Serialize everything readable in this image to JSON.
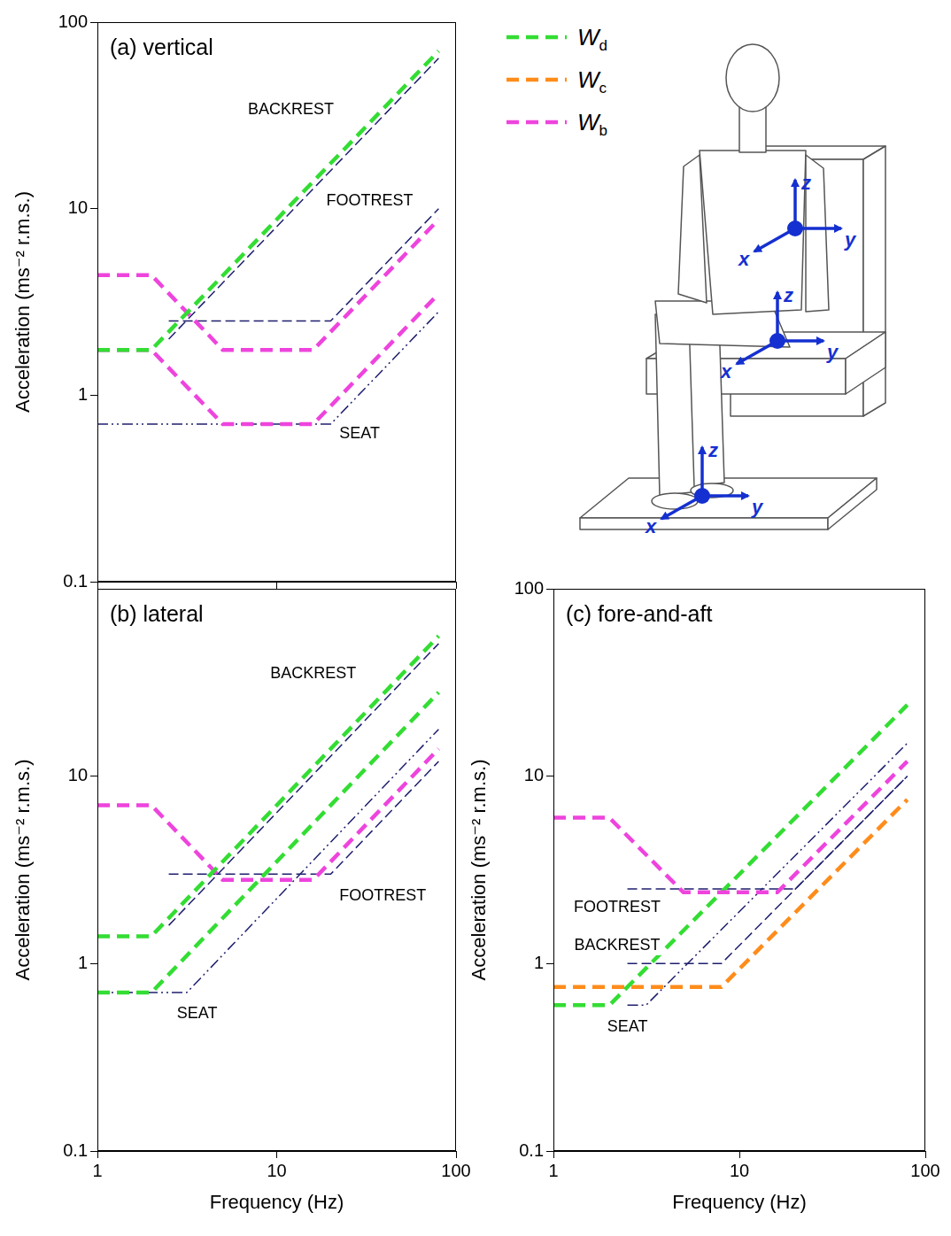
{
  "chart_data": [
    {
      "type": "line",
      "title": "(a) vertical",
      "y_label": "Acceleration (ms⁻² r.m.s.)",
      "log": true,
      "grid": false,
      "tick_labels": "y",
      "xlim": [
        1,
        100
      ],
      "ylim": [
        0.1,
        100
      ],
      "xticks": [
        1,
        10,
        100
      ],
      "yticks": [
        0.1,
        1,
        10,
        100
      ],
      "series": [
        {
          "name": "Wd",
          "color": "#33dd33",
          "line_style": "dashed",
          "x": [
            1,
            2,
            80
          ],
          "values": [
            1.75,
            1.75,
            70
          ]
        },
        {
          "name": "BACKREST",
          "color": "#1f1f6e",
          "line_style": "dashed",
          "x": [
            2.5,
            80
          ],
          "values": [
            2,
            64
          ],
          "label_at": {
            "x": 12,
            "y": 34
          }
        },
        {
          "name": "Wb",
          "color": "#ee44dd",
          "line_style": "dashed",
          "x": [
            1,
            2,
            5,
            16,
            80
          ],
          "values": [
            4.4,
            4.4,
            1.75,
            1.75,
            8.75
          ]
        },
        {
          "name": "FOOTREST",
          "color": "#1f1f6e",
          "line_style": "dashed",
          "x": [
            2.5,
            20,
            80
          ],
          "values": [
            2.5,
            2.5,
            10
          ],
          "label_at": {
            "x": 33,
            "y": 11
          }
        },
        {
          "name": "Wb",
          "color": "#ee44dd",
          "line_style": "dashed",
          "x": [
            1,
            2,
            5,
            16,
            80
          ],
          "values": [
            1.75,
            1.75,
            0.7,
            0.7,
            3.5
          ]
        },
        {
          "name": "SEAT",
          "color": "#1f1f6e",
          "line_style": "dashdot",
          "x": [
            1,
            20,
            80
          ],
          "values": [
            0.7,
            0.7,
            2.8
          ],
          "label_at": {
            "x": 29,
            "y": 0.62
          }
        }
      ]
    },
    {
      "type": "line",
      "title": "(b) lateral",
      "x_label": "Frequency (Hz)",
      "y_label": "Acceleration (ms⁻² r.m.s.)",
      "log": true,
      "grid": false,
      "xlim": [
        1,
        100
      ],
      "ylim": [
        0.1,
        100
      ],
      "xticks": [
        1,
        10,
        100
      ],
      "yticks": [
        0.1,
        1,
        10
      ],
      "series": [
        {
          "name": "Wd",
          "color": "#33dd33",
          "line_style": "dashed",
          "x": [
            1,
            2,
            80
          ],
          "values": [
            1.4,
            1.4,
            56
          ]
        },
        {
          "name": "BACKREST",
          "color": "#1f1f6e",
          "line_style": "dashed",
          "x": [
            2.5,
            80
          ],
          "values": [
            1.6,
            51
          ],
          "label_at": {
            "x": 16,
            "y": 35
          }
        },
        {
          "name": "Wb",
          "color": "#ee44dd",
          "line_style": "dashed",
          "x": [
            1,
            2,
            5,
            16,
            80
          ],
          "values": [
            7,
            7,
            2.8,
            2.8,
            14
          ]
        },
        {
          "name": "FOOTREST",
          "color": "#1f1f6e",
          "line_style": "dashed",
          "x": [
            2.5,
            20,
            80
          ],
          "values": [
            3,
            3,
            12
          ],
          "label_at": {
            "x": 39,
            "y": 2.3
          }
        },
        {
          "name": "Wd",
          "color": "#33dd33",
          "line_style": "dashed",
          "x": [
            1,
            2,
            80
          ],
          "values": [
            0.7,
            0.7,
            28
          ]
        },
        {
          "name": "SEAT",
          "color": "#1f1f6e",
          "line_style": "dashdot",
          "x": [
            1,
            3.15,
            80
          ],
          "values": [
            0.7,
            0.7,
            17.8
          ],
          "label_at": {
            "x": 3.6,
            "y": 0.54
          }
        }
      ]
    },
    {
      "type": "line",
      "title": "(c) fore-and-aft",
      "x_label": "Frequency (Hz)",
      "y_label": "Acceleration (ms⁻² r.m.s.)",
      "log": true,
      "grid": false,
      "xlim": [
        1,
        100
      ],
      "ylim": [
        0.1,
        100
      ],
      "xticks": [
        1,
        10,
        100
      ],
      "yticks": [
        0.1,
        1,
        10,
        100
      ],
      "series": [
        {
          "name": "Wb",
          "color": "#ee44dd",
          "line_style": "dashed",
          "x": [
            1,
            2,
            5,
            16,
            80
          ],
          "values": [
            6,
            6,
            2.4,
            2.4,
            12
          ]
        },
        {
          "name": "FOOTREST",
          "color": "#1f1f6e",
          "line_style": "dashed",
          "x": [
            2.5,
            20,
            80
          ],
          "values": [
            2.5,
            2.5,
            10
          ],
          "label_at": {
            "x": 2.2,
            "y": 2.0
          }
        },
        {
          "name": "Wc",
          "color": "#ff8c1a",
          "line_style": "dashed",
          "x": [
            1,
            8,
            80
          ],
          "values": [
            0.75,
            0.75,
            7.5
          ]
        },
        {
          "name": "BACKREST",
          "color": "#1f1f6e",
          "line_style": "dashed",
          "x": [
            2.5,
            8,
            80
          ],
          "values": [
            1,
            1,
            10
          ],
          "label_at": {
            "x": 2.2,
            "y": 1.25
          }
        },
        {
          "name": "Wd",
          "color": "#33dd33",
          "line_style": "dashed",
          "x": [
            1,
            2,
            80
          ],
          "values": [
            0.6,
            0.6,
            24
          ]
        },
        {
          "name": "SEAT",
          "color": "#1f1f6e",
          "line_style": "dashdot",
          "x": [
            2.5,
            3.15,
            80
          ],
          "values": [
            0.6,
            0.6,
            15
          ],
          "label_at": {
            "x": 2.5,
            "y": 0.46
          }
        }
      ]
    }
  ],
  "key": [
    {
      "name": "Wd",
      "color": "#33dd33"
    },
    {
      "name": "Wc",
      "color": "#ff8c1a"
    },
    {
      "name": "Wb",
      "color": "#ee44dd"
    }
  ],
  "diagram": {
    "axis_labels": [
      "x",
      "y",
      "z"
    ]
  }
}
